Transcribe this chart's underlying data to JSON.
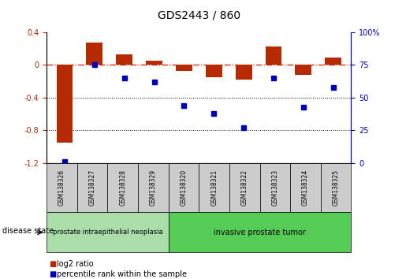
{
  "title": "GDS2443 / 860",
  "samples": [
    "GSM138326",
    "GSM138327",
    "GSM138328",
    "GSM138329",
    "GSM138320",
    "GSM138321",
    "GSM138322",
    "GSM138323",
    "GSM138324",
    "GSM138325"
  ],
  "log2_ratio": [
    -0.95,
    0.27,
    0.13,
    0.05,
    -0.07,
    -0.15,
    -0.18,
    0.22,
    -0.12,
    0.09
  ],
  "percentile_rank": [
    1,
    75,
    65,
    62,
    44,
    38,
    27,
    65,
    43,
    58
  ],
  "ylim_left": [
    -1.2,
    0.4
  ],
  "ylim_right": [
    0,
    100
  ],
  "bar_color": "#b52a00",
  "dot_color": "#0000bb",
  "dashed_line_color": "#cc2200",
  "grid_color": "#000000",
  "n_cat1": 4,
  "n_cat2": 6,
  "cat1_label": "prostate intraepithelial neoplasia",
  "cat2_label": "invasive prostate tumor",
  "cat1_color": "#aaddaa",
  "cat2_color": "#55cc55",
  "disease_state_label": "disease state",
  "legend_red_label": "log2 ratio",
  "legend_blue_label": "percentile rank within the sample",
  "right_yticks": [
    0,
    25,
    50,
    75,
    100
  ],
  "right_yticklabels": [
    "0",
    "25",
    "50",
    "75",
    "100%"
  ],
  "left_yticks": [
    -1.2,
    -0.8,
    -0.4,
    0.0,
    0.4
  ],
  "left_yticklabels": [
    "-1.2",
    "-0.8",
    "-0.4",
    "0",
    "0.4"
  ],
  "background_color": "#ffffff",
  "sample_box_color": "#cccccc",
  "title_fontsize": 10,
  "tick_fontsize": 7,
  "label_fontsize": 7,
  "legend_fontsize": 7
}
